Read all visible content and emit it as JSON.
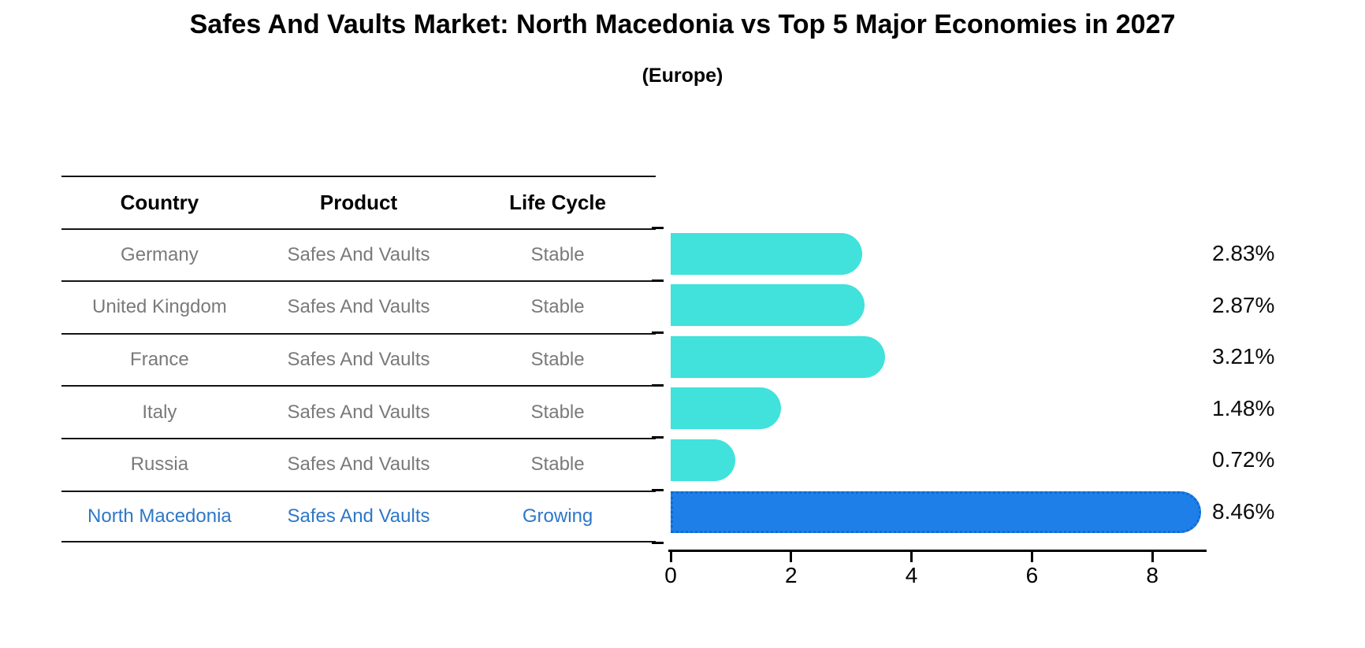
{
  "title": "Safes And Vaults Market: North Macedonia vs Top 5 Major Economies in 2027",
  "subtitle": "(Europe)",
  "table": {
    "headers": [
      "Country",
      "Product",
      "Life Cycle"
    ],
    "rows": [
      {
        "country": "Germany",
        "product": "Safes And Vaults",
        "life_cycle": "Stable",
        "highlight": false
      },
      {
        "country": "United Kingdom",
        "product": "Safes And Vaults",
        "life_cycle": "Stable",
        "highlight": false
      },
      {
        "country": "France",
        "product": "Safes And Vaults",
        "life_cycle": "Stable",
        "highlight": false
      },
      {
        "country": "Italy",
        "product": "Safes And Vaults",
        "life_cycle": "Stable",
        "highlight": false
      },
      {
        "country": "Russia",
        "product": "Safes And Vaults",
        "life_cycle": "Stable",
        "highlight": false
      },
      {
        "country": "North Macedonia",
        "product": "Safes And Vaults",
        "life_cycle": "Growing",
        "highlight": true
      }
    ]
  },
  "chart_data": {
    "type": "bar",
    "orientation": "horizontal",
    "title": "Safes And Vaults Market: North Macedonia vs Top 5 Major Economies in 2027",
    "subtitle": "(Europe)",
    "categories": [
      "Germany",
      "United Kingdom",
      "France",
      "Italy",
      "Russia",
      "North Macedonia"
    ],
    "values": [
      2.83,
      2.87,
      3.21,
      1.48,
      0.72,
      8.46
    ],
    "value_labels": [
      "2.83%",
      "2.87%",
      "3.21%",
      "1.48%",
      "0.72%",
      "8.46%"
    ],
    "highlight_index": 5,
    "xticks": [
      "0",
      "2",
      "4",
      "6",
      "8"
    ],
    "xlim": [
      0,
      8.9
    ],
    "grid": false,
    "legend": false,
    "bar_color": "#40E2DB",
    "highlight_color": "#1E7FE8",
    "highlight_edge_color": "#0F6AD4"
  },
  "colors": {
    "background": "#FFFFFF",
    "heading_text": "#000000",
    "muted_text": "#7A7A7A",
    "highlight_text": "#2E77C8",
    "line": "#151515"
  }
}
